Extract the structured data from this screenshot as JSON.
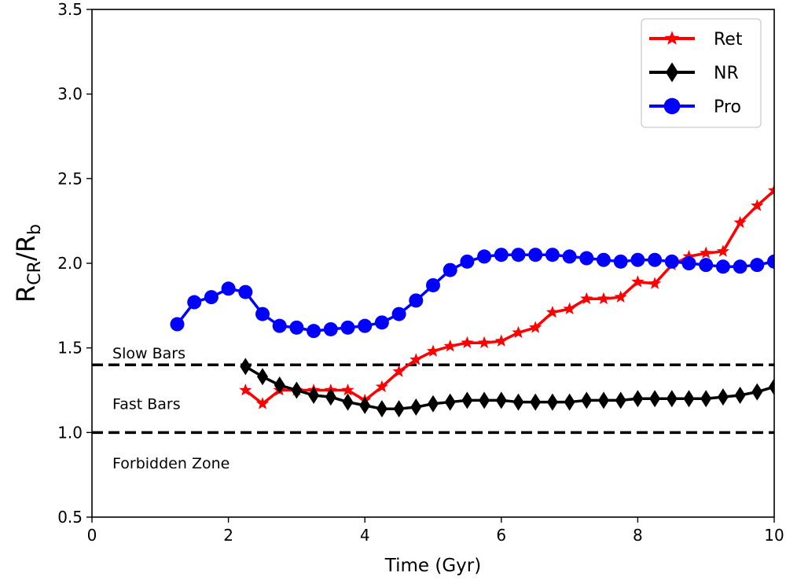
{
  "chart_data": {
    "type": "line",
    "title": "",
    "xlabel": "Time (Gyr)",
    "ylabel_main": "R",
    "ylabel_sub1": "CR",
    "ylabel_slash": "/R",
    "ylabel_sub2": "b",
    "xlim": [
      0,
      10
    ],
    "ylim": [
      0.5,
      3.5
    ],
    "xticks": [
      0,
      2,
      4,
      6,
      8,
      10
    ],
    "xtick_labels": [
      "0",
      "2",
      "4",
      "6",
      "8",
      "10"
    ],
    "yticks": [
      0.5,
      1.0,
      1.5,
      2.0,
      2.5,
      3.0,
      3.5
    ],
    "ytick_labels": [
      "0.5",
      "1.0",
      "1.5",
      "2.0",
      "2.5",
      "3.0",
      "3.5"
    ],
    "hlines": [
      {
        "y": 1.4,
        "style": "dashed",
        "color": "#000000"
      },
      {
        "y": 1.0,
        "style": "dashed",
        "color": "#000000"
      }
    ],
    "annotations": [
      {
        "text": "Slow Bars",
        "x": 0.3,
        "y": 1.47
      },
      {
        "text": "Fast Bars",
        "x": 0.3,
        "y": 1.17
      },
      {
        "text": "Forbidden Zone",
        "x": 0.3,
        "y": 0.82
      }
    ],
    "legend_position": "top-right",
    "series": [
      {
        "name": "Ret",
        "color": "#ff0000",
        "marker": "star",
        "x": [
          2.25,
          2.5,
          2.75,
          3.0,
          3.25,
          3.5,
          3.75,
          4.0,
          4.25,
          4.5,
          4.75,
          5.0,
          5.25,
          5.5,
          5.75,
          6.0,
          6.25,
          6.5,
          6.75,
          7.0,
          7.25,
          7.5,
          7.75,
          8.0,
          8.25,
          8.5,
          8.75,
          9.0,
          9.25,
          9.5,
          9.75,
          10.0
        ],
        "y": [
          1.25,
          1.17,
          1.25,
          1.25,
          1.25,
          1.25,
          1.25,
          1.19,
          1.27,
          1.36,
          1.43,
          1.48,
          1.51,
          1.53,
          1.53,
          1.54,
          1.59,
          1.62,
          1.71,
          1.73,
          1.79,
          1.79,
          1.8,
          1.89,
          1.88,
          1.99,
          2.04,
          2.06,
          2.07,
          2.24,
          2.34,
          2.43
        ]
      },
      {
        "name": "NR",
        "color": "#000000",
        "marker": "diamond",
        "x": [
          2.25,
          2.5,
          2.75,
          3.0,
          3.25,
          3.5,
          3.75,
          4.0,
          4.25,
          4.5,
          4.75,
          5.0,
          5.25,
          5.5,
          5.75,
          6.0,
          6.25,
          6.5,
          6.75,
          7.0,
          7.25,
          7.5,
          7.75,
          8.0,
          8.25,
          8.5,
          8.75,
          9.0,
          9.25,
          9.5,
          9.75,
          10.0
        ],
        "y": [
          1.39,
          1.33,
          1.28,
          1.25,
          1.22,
          1.21,
          1.18,
          1.16,
          1.14,
          1.14,
          1.15,
          1.17,
          1.18,
          1.19,
          1.19,
          1.19,
          1.18,
          1.18,
          1.18,
          1.18,
          1.19,
          1.19,
          1.19,
          1.2,
          1.2,
          1.2,
          1.2,
          1.2,
          1.21,
          1.22,
          1.24,
          1.27
        ]
      },
      {
        "name": "Pro",
        "color": "#0000ff",
        "marker": "circle",
        "x": [
          1.25,
          1.5,
          1.75,
          2.0,
          2.25,
          2.5,
          2.75,
          3.0,
          3.25,
          3.5,
          3.75,
          4.0,
          4.25,
          4.5,
          4.75,
          5.0,
          5.25,
          5.5,
          5.75,
          6.0,
          6.25,
          6.5,
          6.75,
          7.0,
          7.25,
          7.5,
          7.75,
          8.0,
          8.25,
          8.5,
          8.75,
          9.0,
          9.25,
          9.5,
          9.75,
          10.0
        ],
        "y": [
          1.64,
          1.77,
          1.8,
          1.85,
          1.83,
          1.7,
          1.63,
          1.62,
          1.6,
          1.61,
          1.62,
          1.63,
          1.65,
          1.7,
          1.78,
          1.87,
          1.96,
          2.01,
          2.04,
          2.05,
          2.05,
          2.05,
          2.05,
          2.04,
          2.03,
          2.02,
          2.01,
          2.02,
          2.02,
          2.01,
          2.0,
          1.99,
          1.98,
          1.98,
          1.99,
          2.01
        ]
      }
    ]
  }
}
